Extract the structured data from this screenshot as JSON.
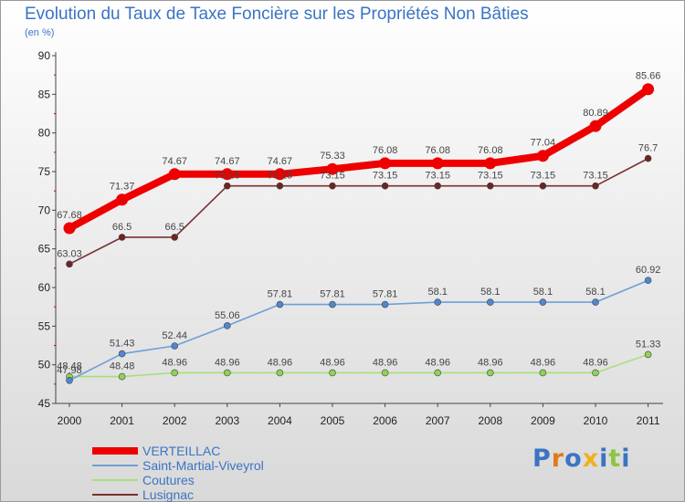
{
  "title": "Evolution du Taux de Taxe Foncière sur les Propriétés Non Bâties",
  "unit": "(en %)",
  "logo": "Proxiti",
  "chart_data": {
    "type": "line",
    "title": "Evolution du Taux de Taxe Foncière sur les Propriétés Non Bâties",
    "ylabel": "(en %)",
    "xlabel": "",
    "ylim": [
      45,
      90
    ],
    "yticks": [
      45,
      50,
      55,
      60,
      65,
      70,
      75,
      80,
      85,
      90
    ],
    "categories": [
      "2000",
      "2001",
      "2002",
      "2003",
      "2004",
      "2005",
      "2006",
      "2007",
      "2008",
      "2009",
      "2010",
      "2011"
    ],
    "series": [
      {
        "name": "VERTEILLAC",
        "color": "#ee0000",
        "values": [
          67.68,
          71.37,
          74.67,
          74.67,
          74.67,
          75.33,
          76.08,
          76.08,
          76.08,
          77.04,
          80.89,
          85.66
        ],
        "labels": [
          "67.68",
          "71.37",
          "74.67",
          "74.67",
          "74.67",
          "75.33",
          "76.08",
          "76.08",
          "76.08",
          "77.04",
          "80.89",
          "85.66"
        ]
      },
      {
        "name": "Saint-Martial-Viveyrol",
        "color": "#6f9fd6",
        "values": [
          47.98,
          51.43,
          52.44,
          55.06,
          57.81,
          57.81,
          57.81,
          58.1,
          58.1,
          58.1,
          58.1,
          60.92
        ],
        "labels": [
          "47.98",
          "51.43",
          "52.44",
          "55.06",
          "57.81",
          "57.81",
          "57.81",
          "58.1",
          "58.1",
          "58.1",
          "58.1",
          "60.92"
        ]
      },
      {
        "name": "Coutures",
        "color": "#a8e07a",
        "values": [
          48.48,
          48.48,
          48.96,
          48.96,
          48.96,
          48.96,
          48.96,
          48.96,
          48.96,
          48.96,
          48.96,
          51.33
        ],
        "labels": [
          "48.48",
          "48.48",
          "48.96",
          "48.96",
          "48.96",
          "48.96",
          "48.96",
          "48.96",
          "48.96",
          "48.96",
          "48.96",
          "51.33"
        ]
      },
      {
        "name": "Lusignac",
        "color": "#7a3030",
        "values": [
          63.03,
          66.5,
          66.5,
          73.15,
          73.15,
          73.15,
          73.15,
          73.15,
          73.15,
          73.15,
          73.15,
          76.7
        ],
        "labels": [
          "63.03",
          "66.5",
          "66.5",
          "73.15",
          "73.15",
          "73.15",
          "73.15",
          "73.15",
          "73.15",
          "73.15",
          "73.15",
          "76.7"
        ]
      }
    ],
    "legend_position": "bottom-left",
    "grid": false
  }
}
